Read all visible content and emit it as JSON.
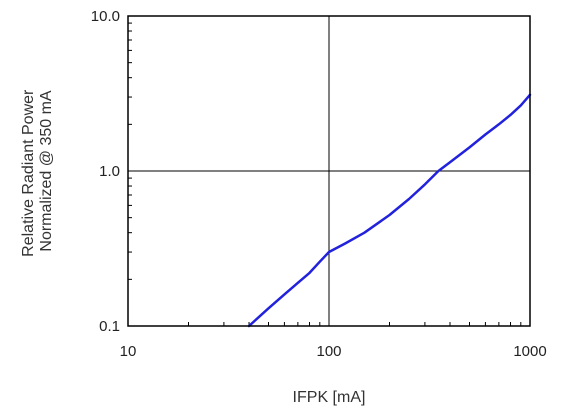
{
  "chart_data": {
    "type": "line",
    "x_scale": "log",
    "y_scale": "log",
    "xlim": [
      10,
      1000
    ],
    "ylim": [
      0.1,
      10.0
    ],
    "x_ticks": [
      10,
      100,
      1000
    ],
    "x_tick_labels": [
      "10",
      "100",
      "1000"
    ],
    "y_ticks": [
      0.1,
      1.0,
      10.0
    ],
    "y_tick_labels": [
      "0.1",
      "1.0",
      "10.0"
    ],
    "xlabel": "IFPK [mA]",
    "ylabel_lines": [
      "Relative Radiant Power",
      "Normalized @ 350 mA"
    ],
    "grid": true,
    "series": [
      {
        "color": "#2222dd",
        "x": [
          40,
          50,
          60,
          70,
          80,
          90,
          100,
          120,
          150,
          200,
          250,
          300,
          350,
          400,
          500,
          600,
          700,
          800,
          900,
          1000
        ],
        "y": [
          0.1,
          0.13,
          0.16,
          0.19,
          0.22,
          0.26,
          0.3,
          0.34,
          0.4,
          0.52,
          0.66,
          0.82,
          1.0,
          1.14,
          1.42,
          1.72,
          2.0,
          2.3,
          2.65,
          3.1
        ]
      }
    ]
  }
}
